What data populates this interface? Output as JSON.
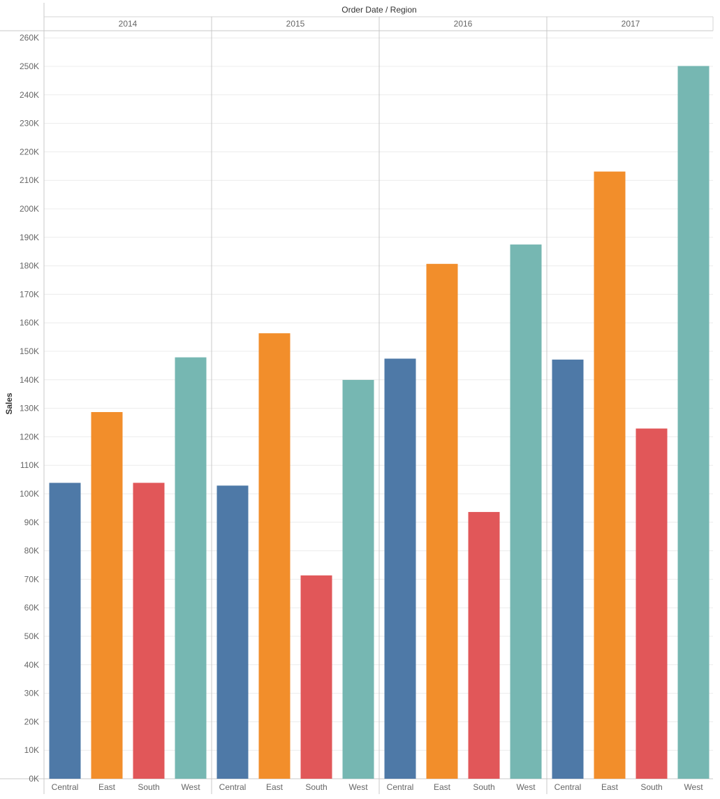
{
  "chart_data": {
    "type": "bar",
    "title": "Order Date / Region",
    "ylabel": "Sales",
    "xlabel": "",
    "ylim": [
      0,
      260000
    ],
    "yticks": [
      0,
      10000,
      20000,
      30000,
      40000,
      50000,
      60000,
      70000,
      80000,
      90000,
      100000,
      110000,
      120000,
      130000,
      140000,
      150000,
      160000,
      170000,
      180000,
      190000,
      200000,
      210000,
      220000,
      230000,
      240000,
      250000,
      260000
    ],
    "ytick_labels": [
      "0K",
      "10K",
      "20K",
      "30K",
      "40K",
      "50K",
      "60K",
      "70K",
      "80K",
      "90K",
      "100K",
      "110K",
      "120K",
      "130K",
      "140K",
      "150K",
      "160K",
      "170K",
      "180K",
      "190K",
      "200K",
      "210K",
      "220K",
      "230K",
      "240K",
      "250K",
      "260K"
    ],
    "grid": true,
    "years": [
      "2014",
      "2015",
      "2016",
      "2017"
    ],
    "categories": [
      "Central",
      "East",
      "South",
      "West"
    ],
    "colors": {
      "Central": "#4e79a7",
      "East": "#f28e2b",
      "South": "#e15759",
      "West": "#76b7b2"
    },
    "values": {
      "2014": [
        103838,
        128680,
        103846,
        147883
      ],
      "2015": [
        102874,
        156332,
        71360,
        139967
      ],
      "2016": [
        147429,
        180686,
        93611,
        187480
      ],
      "2017": [
        147098,
        213082,
        122903,
        250128
      ]
    }
  }
}
